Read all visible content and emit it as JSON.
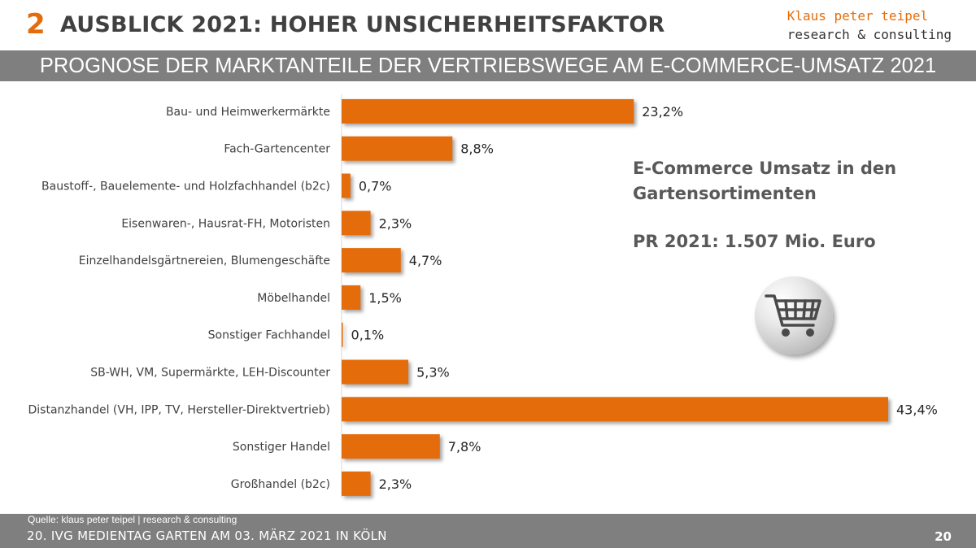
{
  "header": {
    "section_number": "2",
    "title": "AUSBLICK 2021: HOHER UNSICHERHEITSFAKTOR",
    "logo_line1": "Klaus peter teipel",
    "logo_line2": "research & consulting"
  },
  "subtitle": "PROGNOSE DER MARKTANTEILE DER VERTRIEBSWEGE AM E-COMMERCE-UMSATZ 2021",
  "info": {
    "heading": "E-Commerce Umsatz in den Gartensortimenten",
    "value": "PR 2021: 1.507 Mio. Euro",
    "icon": "shopping-cart-icon"
  },
  "chart_data": {
    "type": "bar",
    "orientation": "horizontal",
    "title": "PROGNOSE DER MARKTANTEILE DER VERTRIEBSWEGE AM E-COMMERCE-UMSATZ 2021",
    "categories": [
      "Bau- und Heimwerkermärkte",
      "Fach-Gartencenter",
      "Baustoff-, Bauelemente- und Holzfachhandel (b2c)",
      "Eisenwaren-, Hausrat-FH, Motoristen",
      "Einzelhandelsgärtnereien, Blumengeschäfte",
      "Möbelhandel",
      "Sonstiger Fachhandel",
      "SB-WH, VM, Supermärkte, LEH-Discounter",
      "Distanzhandel (VH, IPP, TV, Hersteller-Direktvertrieb)",
      "Sonstiger Handel",
      "Großhandel (b2c)"
    ],
    "values": [
      23.2,
      8.8,
      0.7,
      2.3,
      4.7,
      1.5,
      0.1,
      5.3,
      43.4,
      7.8,
      2.3
    ],
    "value_labels": [
      "23,2%",
      "8,8%",
      "0,7%",
      "2,3%",
      "4,7%",
      "1,5%",
      "0,1%",
      "5,3%",
      "43,4%",
      "7,8%",
      "2,3%"
    ],
    "unit": "%",
    "xlim": [
      0,
      43.4
    ],
    "grid": false,
    "legend": "none",
    "bar_color": "#e46c0a"
  },
  "footer": {
    "source": "Quelle: klaus peter teipel | research & consulting",
    "event": "20. IVG MEDIENTAG GARTEN AM 03. MÄRZ 2021 IN KÖLN",
    "page": "20"
  }
}
